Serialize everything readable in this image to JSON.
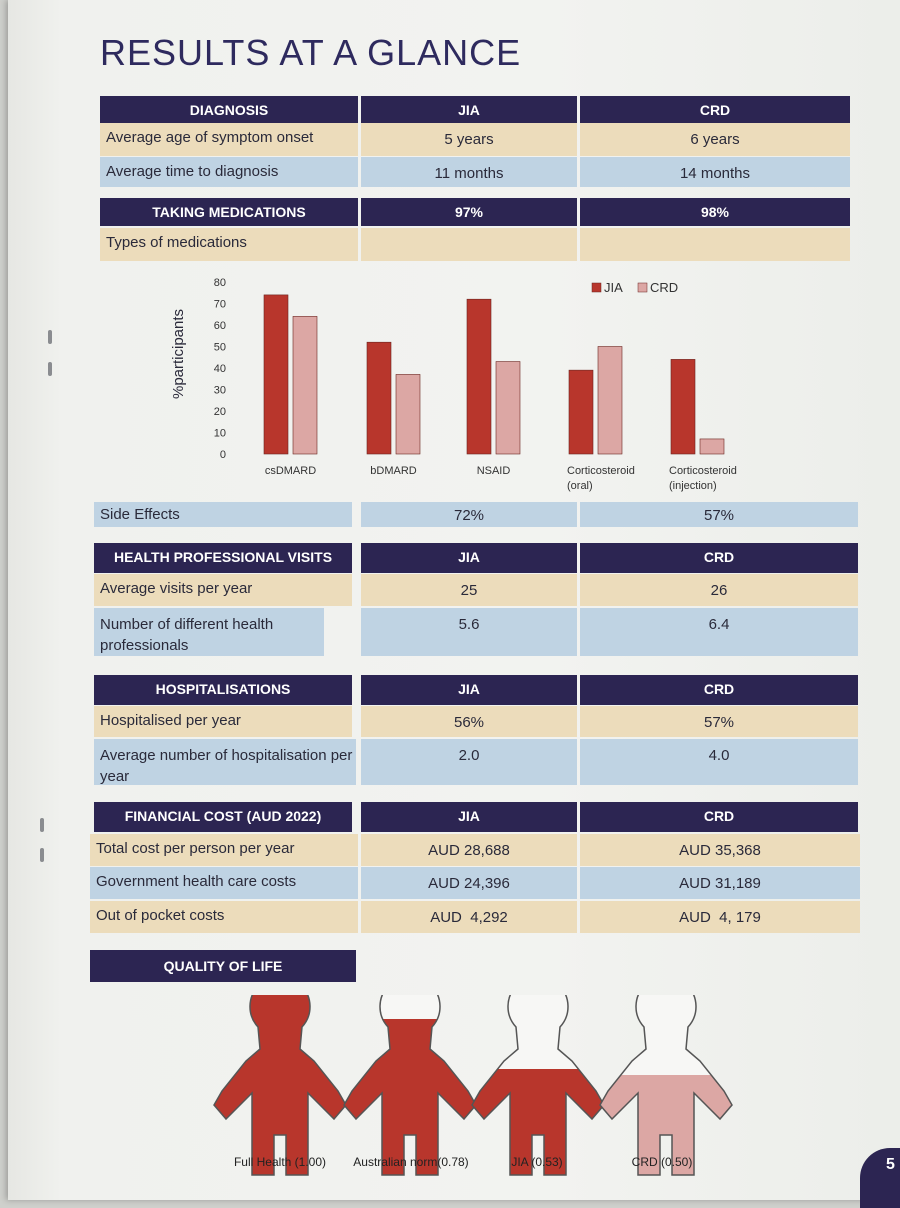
{
  "title": "RESULTS AT A GLANCE",
  "colors": {
    "navy": "#2c2552",
    "tan": "#ecdcbb",
    "blue": "#bfd3e3",
    "jia": "#b8362c",
    "crd": "#dca7a4"
  },
  "diagnosis": {
    "header": "DIAGNOSIS",
    "col_jia": "JIA",
    "col_crd": "CRD",
    "rows": [
      {
        "label": "Average age of symptom onset",
        "jia": "5 years",
        "crd": "6 years"
      },
      {
        "label": "Average time to diagnosis",
        "jia": "11 months",
        "crd": "14 months"
      }
    ]
  },
  "medications": {
    "header": "TAKING MEDICATIONS",
    "jia": "97%",
    "crd": "98%",
    "types_label": "Types of medications",
    "side_effects": {
      "label": "Side Effects",
      "jia": "72%",
      "crd": "57%"
    }
  },
  "chart_data": {
    "type": "bar",
    "categories": [
      "csDMARD",
      "bDMARD",
      "NSAID",
      "Corticosteroid (oral)",
      "Corticosteroid (injection)"
    ],
    "category_lines": [
      [
        "csDMARD"
      ],
      [
        "bDMARD"
      ],
      [
        "NSAID"
      ],
      [
        "Corticosteroid",
        "(oral)"
      ],
      [
        "Corticosteroid",
        "(injection)"
      ]
    ],
    "series": [
      {
        "name": "JIA",
        "values": [
          74,
          52,
          72,
          39,
          44
        ]
      },
      {
        "name": "CRD",
        "values": [
          64,
          37,
          43,
          50,
          7
        ]
      }
    ],
    "ylabel": "%participants",
    "ylim": [
      0,
      80
    ],
    "yticks": [
      0,
      10,
      20,
      30,
      40,
      50,
      60,
      70,
      80
    ],
    "legend_position": "top-right"
  },
  "visits": {
    "header": "HEALTH PROFESSIONAL VISITS",
    "col_jia": "JIA",
    "col_crd": "CRD",
    "rows": [
      {
        "label": "Average visits per year",
        "jia": "25",
        "crd": "26"
      },
      {
        "label": "Number of different health professionals",
        "jia": "5.6",
        "crd": "6.4"
      }
    ]
  },
  "hospital": {
    "header": "HOSPITALISATIONS",
    "col_jia": "JIA",
    "col_crd": "CRD",
    "rows": [
      {
        "label": "Hospitalised per year",
        "jia": "56%",
        "crd": "57%"
      },
      {
        "label": "Average number of hospitalisation per year",
        "jia": "2.0",
        "crd": "4.0"
      }
    ]
  },
  "financial": {
    "header": "FINANCIAL COST (AUD 2022)",
    "col_jia": "JIA",
    "col_crd": "CRD",
    "rows": [
      {
        "label": "Total cost per person per year",
        "jia": "AUD 28,688",
        "crd": "AUD 35,368"
      },
      {
        "label": "Government health care costs",
        "jia": "AUD 24,396",
        "crd": "AUD 31,189"
      },
      {
        "label": "Out of pocket costs",
        "jia": "AUD  4,292",
        "crd": "AUD  4, 179"
      }
    ]
  },
  "quality_of_life": {
    "header": "QUALITY OF LIFE",
    "figures": [
      {
        "label": "Full Health (1.00)",
        "value": 1.0
      },
      {
        "label": "Australian norm(0.78)",
        "value": 0.78
      },
      {
        "label": "JIA (0.53)",
        "value": 0.53
      },
      {
        "label": "CRD (0.50)",
        "value": 0.5
      }
    ]
  },
  "page_number": "5"
}
